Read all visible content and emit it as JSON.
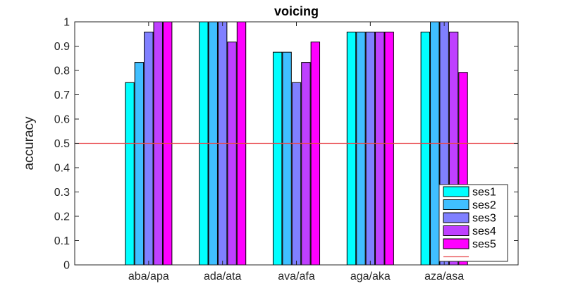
{
  "chart_data": {
    "type": "bar",
    "title": "voicing",
    "xlabel": "",
    "ylabel": "accuracy",
    "categories": [
      "aba/apa",
      "ada/ata",
      "ava/afa",
      "aga/aka",
      "aza/asa"
    ],
    "x_range": [
      0,
      6
    ],
    "ylim": [
      0,
      1
    ],
    "yticks": [
      0,
      0.1,
      0.2,
      0.3,
      0.4,
      0.5,
      0.6,
      0.7,
      0.8,
      0.9,
      1
    ],
    "ytick_labels": [
      "0",
      "0.1",
      "0.2",
      "0.3",
      "0.4",
      "0.5",
      "0.6",
      "0.7",
      "0.8",
      "0.9",
      "1"
    ],
    "grid": false,
    "legend_position": "bottom-right",
    "series": [
      {
        "name": "ses1",
        "color": "#00ffff",
        "values": [
          0.75,
          1.0,
          0.875,
          0.958,
          0.958
        ]
      },
      {
        "name": "ses2",
        "color": "#40bfff",
        "values": [
          0.833,
          1.0,
          0.875,
          0.958,
          1.0
        ]
      },
      {
        "name": "ses3",
        "color": "#8080ff",
        "values": [
          0.958,
          1.0,
          0.75,
          0.958,
          1.0
        ]
      },
      {
        "name": "ses4",
        "color": "#bf40ff",
        "values": [
          1.0,
          0.917,
          0.833,
          0.958,
          0.958
        ]
      },
      {
        "name": "ses5",
        "color": "#ff00ff",
        "values": [
          1.0,
          1.0,
          0.917,
          0.958,
          0.792
        ]
      }
    ],
    "reference_line": {
      "y": 0.5,
      "color": "#e8474c"
    }
  }
}
